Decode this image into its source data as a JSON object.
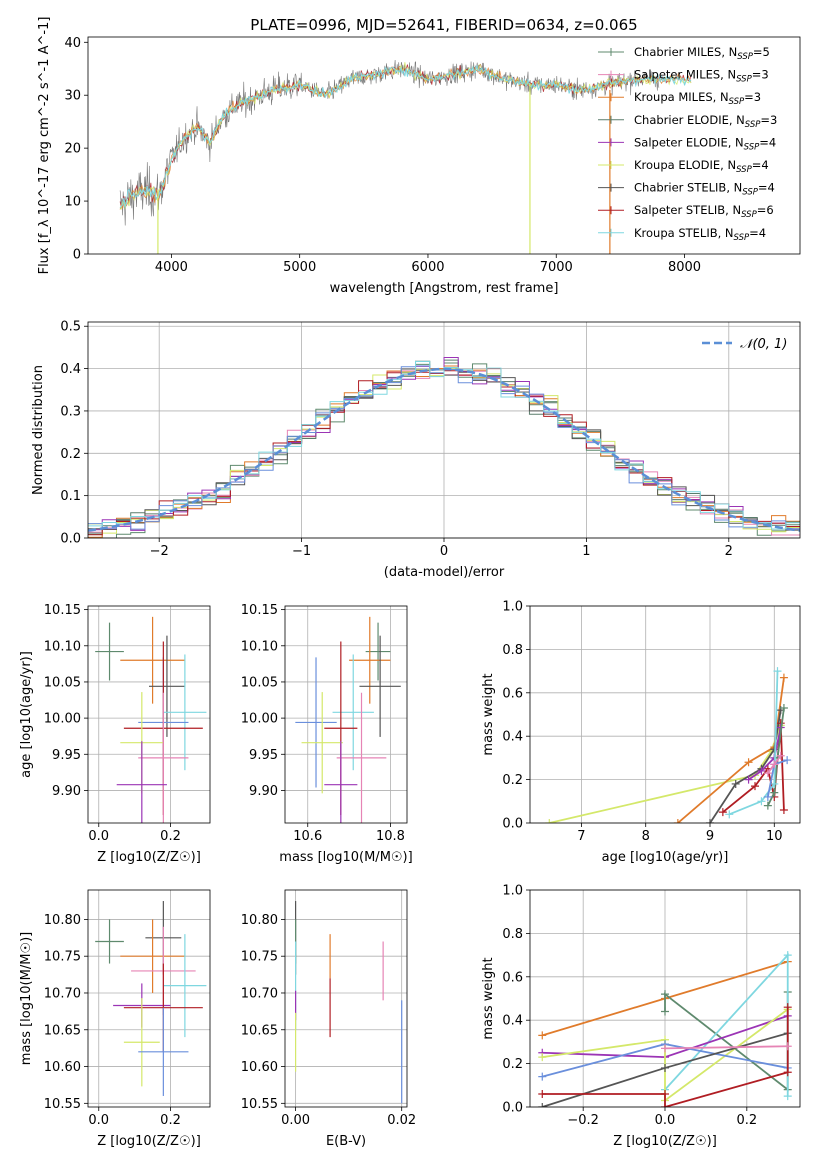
{
  "figure_title": "PLATE=0996, MJD=52641, FIBERID=0634, z=0.065",
  "colors": {
    "Chabrier MILES": "#5f8a6e",
    "Salpeter MILES": "#e684b5",
    "Kroupa MILES": "#e07b2b",
    "Chabrier ELODIE": "#5a7d6c",
    "Salpeter ELODIE": "#9b34b5",
    "Kroupa ELODIE": "#d4e86a",
    "Chabrier STELIB": "#555555",
    "Salpeter STELIB": "#b01d23",
    "Kroupa STELIB": "#7fd7e0",
    "blue": "#6a8fdc",
    "normal_curve": "#5b8fd6"
  },
  "chart_data": [
    {
      "id": "spectrum",
      "type": "line",
      "xlabel": "wavelength [Angstrom, rest frame]",
      "ylabel": "Flux [f_λ 10^-17 erg cm^-2 s^-1 A^-1]",
      "xlim": [
        3350,
        8900
      ],
      "ylim": [
        0,
        41
      ],
      "xticks": [
        4000,
        5000,
        6000,
        7000,
        8000
      ],
      "yticks": [
        0,
        10,
        20,
        30,
        40
      ],
      "grid": false,
      "legend_position": "top-right",
      "legend": [
        {
          "model": "Chabrier MILES",
          "nssp": "5"
        },
        {
          "model": "Salpeter MILES",
          "nssp": "3"
        },
        {
          "model": "Kroupa MILES",
          "nssp": "3"
        },
        {
          "model": "Chabrier ELODIE",
          "nssp": "3"
        },
        {
          "model": "Salpeter ELODIE",
          "nssp": "4"
        },
        {
          "model": "Kroupa ELODIE",
          "nssp": "4"
        },
        {
          "model": "Chabrier STELIB",
          "nssp": "4"
        },
        {
          "model": "Salpeter STELIB",
          "nssp": "6"
        },
        {
          "model": "Kroupa STELIB",
          "nssp": "4"
        }
      ],
      "continuum": {
        "x": [
          3600,
          3700,
          3800,
          3900,
          4000,
          4100,
          4200,
          4300,
          4400,
          4500,
          4600,
          4800,
          5000,
          5200,
          5400,
          5600,
          5800,
          6000,
          6200,
          6400,
          6600,
          6800,
          7000,
          7200,
          7400,
          7600,
          7800
        ],
        "y": [
          9,
          11,
          12,
          11,
          18,
          22,
          24,
          21,
          26,
          28,
          29,
          31,
          32,
          30,
          33,
          34,
          35,
          33,
          34,
          35,
          33,
          32,
          32,
          31,
          32,
          33,
          33
        ]
      },
      "spikes": [
        {
          "x": 3895,
          "y0": 0,
          "y1": 12,
          "color": "Kroupa ELODIE"
        },
        {
          "x": 6795,
          "y0": 0,
          "y1": 32,
          "color": "Kroupa ELODIE"
        },
        {
          "x": 7418,
          "y0": 0,
          "y1": 31,
          "color": "Kroupa MILES"
        }
      ]
    },
    {
      "id": "residual-histogram",
      "type": "histogram",
      "xlabel": "(data-model)/error",
      "ylabel": "Normed distribution",
      "xlim": [
        -2.5,
        2.5
      ],
      "ylim": [
        0,
        0.51
      ],
      "xticks": [
        -2,
        -1,
        0,
        1,
        2
      ],
      "yticks": [
        0.0,
        0.1,
        0.2,
        0.3,
        0.4,
        0.5
      ],
      "grid": true,
      "legend_position": "top-right",
      "reference_label": "𝒩(0, 1)",
      "bin_width": 0.1
    },
    {
      "id": "age-vs-Z",
      "type": "errorbar",
      "xlabel": "Z [log10(Z/Z☉)]",
      "ylabel": "age  [log10(age/yr)]",
      "xlim": [
        -0.03,
        0.31
      ],
      "ylim": [
        9.855,
        10.155
      ],
      "xticks": [
        0.0,
        0.2
      ],
      "yticks": [
        9.9,
        9.95,
        10.0,
        10.05,
        10.1,
        10.15
      ],
      "points": [
        {
          "series": "Chabrier MILES",
          "x": 0.03,
          "xerr": 0.04,
          "y": 10.092,
          "yerr": 0.04
        },
        {
          "series": "Kroupa MILES",
          "x": 0.15,
          "xerr": 0.09,
          "y": 10.08,
          "yerr": 0.06
        },
        {
          "series": "Chabrier STELIB",
          "x": 0.19,
          "xerr": 0.05,
          "y": 10.044,
          "yerr": 0.07
        },
        {
          "series": "Kroupa STELIB",
          "x": 0.24,
          "xerr": 0.06,
          "y": 10.008,
          "yerr": 0.08
        },
        {
          "series": "blue",
          "x": 0.18,
          "xerr": 0.07,
          "y": 9.994,
          "yerr": 0.09
        },
        {
          "series": "Salpeter STELIB",
          "x": 0.18,
          "xerr": 0.11,
          "y": 9.986,
          "yerr": 0.12
        },
        {
          "series": "Kroupa ELODIE",
          "x": 0.12,
          "xerr": 0.06,
          "y": 9.966,
          "yerr": 0.07
        },
        {
          "series": "Salpeter MILES",
          "x": 0.18,
          "xerr": 0.07,
          "y": 9.945,
          "yerr": 0.09
        },
        {
          "series": "Salpeter ELODIE",
          "x": 0.12,
          "xerr": 0.07,
          "y": 9.908,
          "yerr": 0.06
        }
      ]
    },
    {
      "id": "age-vs-mass",
      "type": "errorbar",
      "xlabel": "mass [log10(M/M☉)]",
      "xlim": [
        10.545,
        10.84
      ],
      "ylim": [
        9.855,
        10.155
      ],
      "xticks": [
        10.6,
        10.8
      ],
      "yticks": [
        9.9,
        9.95,
        10.0,
        10.05,
        10.1,
        10.15
      ],
      "points": [
        {
          "series": "Chabrier MILES",
          "x": 10.77,
          "xerr": 0.03,
          "y": 10.092,
          "yerr": 0.04
        },
        {
          "series": "Kroupa MILES",
          "x": 10.75,
          "xerr": 0.05,
          "y": 10.08,
          "yerr": 0.06
        },
        {
          "series": "Chabrier STELIB",
          "x": 10.775,
          "xerr": 0.05,
          "y": 10.044,
          "yerr": 0.07
        },
        {
          "series": "Kroupa STELIB",
          "x": 10.71,
          "xerr": 0.05,
          "y": 10.008,
          "yerr": 0.08
        },
        {
          "series": "blue",
          "x": 10.62,
          "xerr": 0.05,
          "y": 9.994,
          "yerr": 0.09
        },
        {
          "series": "Salpeter STELIB",
          "x": 10.68,
          "xerr": 0.04,
          "y": 9.986,
          "yerr": 0.12
        },
        {
          "series": "Kroupa ELODIE",
          "x": 10.635,
          "xerr": 0.05,
          "y": 9.966,
          "yerr": 0.07
        },
        {
          "series": "Salpeter MILES",
          "x": 10.73,
          "xerr": 0.06,
          "y": 9.945,
          "yerr": 0.09
        },
        {
          "series": "Salpeter ELODIE",
          "x": 10.68,
          "xerr": 0.04,
          "y": 9.908,
          "yerr": 0.06
        }
      ]
    },
    {
      "id": "weight-vs-age",
      "type": "line",
      "xlabel": "age  [log10(age/yr)]",
      "ylabel": "mass weight",
      "xlim": [
        6.2,
        10.4
      ],
      "ylim": [
        0,
        1
      ],
      "xticks": [
        7,
        8,
        9,
        10
      ],
      "yticks": [
        0.0,
        0.2,
        0.4,
        0.6,
        0.8,
        1.0
      ],
      "grid": true,
      "series": [
        {
          "name": "Kroupa ELODIE",
          "x": [
            6.5,
            9.7,
            9.95,
            10.1
          ],
          "y": [
            0.0,
            0.22,
            0.33,
            0.45
          ]
        },
        {
          "name": "Kroupa MILES",
          "x": [
            8.5,
            9.6,
            10.0,
            10.15
          ],
          "y": [
            0.0,
            0.28,
            0.35,
            0.67
          ]
        },
        {
          "name": "Chabrier STELIB",
          "x": [
            9.0,
            9.4,
            9.8,
            10.0,
            10.1
          ],
          "y": [
            0.0,
            0.18,
            0.25,
            0.34,
            0.52
          ]
        },
        {
          "name": "Salpeter STELIB",
          "x": [
            9.2,
            9.7,
            9.9,
            10.0,
            10.1,
            10.15
          ],
          "y": [
            0.05,
            0.17,
            0.25,
            0.12,
            0.46,
            0.06
          ]
        },
        {
          "name": "Salpeter ELODIE",
          "x": [
            9.6,
            9.8,
            10.0,
            10.1
          ],
          "y": [
            0.2,
            0.24,
            0.3,
            0.44
          ]
        },
        {
          "name": "Chabrier MILES",
          "x": [
            9.9,
            10.0,
            10.05,
            10.15
          ],
          "y": [
            0.08,
            0.14,
            0.3,
            0.53
          ]
        },
        {
          "name": "Kroupa STELIB",
          "x": [
            9.3,
            9.8,
            10.0,
            10.05
          ],
          "y": [
            0.04,
            0.1,
            0.18,
            0.7
          ]
        },
        {
          "name": "blue",
          "x": [
            9.9,
            10.0,
            10.2
          ],
          "y": [
            0.12,
            0.27,
            0.29
          ]
        },
        {
          "name": "Salpeter MILES",
          "x": [
            9.9,
            10.0,
            10.1
          ],
          "y": [
            0.23,
            0.27,
            0.31
          ]
        }
      ]
    },
    {
      "id": "mass-vs-Z",
      "type": "errorbar",
      "xlabel": "Z [log10(Z/Z☉)]",
      "ylabel": "mass [log10(M/M☉)]",
      "xlim": [
        -0.03,
        0.31
      ],
      "ylim": [
        10.545,
        10.84
      ],
      "xticks": [
        0.0,
        0.2
      ],
      "yticks": [
        10.55,
        10.6,
        10.65,
        10.7,
        10.75,
        10.8
      ],
      "points": [
        {
          "series": "Chabrier MILES",
          "x": 0.03,
          "xerr": 0.04,
          "y": 10.77,
          "yerr": 0.03
        },
        {
          "series": "Chabrier STELIB",
          "x": 0.18,
          "xerr": 0.05,
          "y": 10.775,
          "yerr": 0.05
        },
        {
          "series": "Kroupa MILES",
          "x": 0.15,
          "xerr": 0.09,
          "y": 10.75,
          "yerr": 0.05
        },
        {
          "series": "Salpeter MILES",
          "x": 0.18,
          "xerr": 0.09,
          "y": 10.73,
          "yerr": 0.06
        },
        {
          "series": "Kroupa STELIB",
          "x": 0.24,
          "xerr": 0.06,
          "y": 10.71,
          "yerr": 0.07
        },
        {
          "series": "Salpeter ELODIE",
          "x": 0.12,
          "xerr": 0.08,
          "y": 10.683,
          "yerr": 0.03
        },
        {
          "series": "Salpeter STELIB",
          "x": 0.18,
          "xerr": 0.11,
          "y": 10.68,
          "yerr": 0.06
        },
        {
          "series": "Kroupa ELODIE",
          "x": 0.12,
          "xerr": 0.05,
          "y": 10.633,
          "yerr": 0.06
        },
        {
          "series": "blue",
          "x": 0.18,
          "xerr": 0.07,
          "y": 10.62,
          "yerr": 0.06
        }
      ]
    },
    {
      "id": "mass-vs-EBV",
      "type": "errorbar",
      "xlabel": "E(B-V)",
      "xlim": [
        -0.002,
        0.021
      ],
      "ylim": [
        10.545,
        10.84
      ],
      "xticks": [
        0.0,
        0.02
      ],
      "yticks": [
        10.55,
        10.6,
        10.65,
        10.7,
        10.75,
        10.8
      ],
      "points": [
        {
          "series": "Chabrier STELIB",
          "x": 0.0,
          "xerr": 0,
          "y": 10.775,
          "yerr": 0.05
        },
        {
          "series": "Chabrier MILES",
          "x": 0.0,
          "xerr": 0,
          "y": 10.77,
          "yerr": 0.03
        },
        {
          "series": "Kroupa MILES",
          "x": 0.0065,
          "xerr": 0,
          "y": 10.75,
          "yerr": 0.03
        },
        {
          "series": "Kroupa STELIB",
          "x": 0.0,
          "xerr": 0,
          "y": 10.71,
          "yerr": 0.06
        },
        {
          "series": "Salpeter MILES",
          "x": 0.0165,
          "xerr": 0,
          "y": 10.73,
          "yerr": 0.04
        },
        {
          "series": "Salpeter ELODIE",
          "x": 0.0,
          "xerr": 0,
          "y": 10.683,
          "yerr": 0.02
        },
        {
          "series": "Salpeter STELIB",
          "x": 0.0065,
          "xerr": 0,
          "y": 10.68,
          "yerr": 0.04
        },
        {
          "series": "Kroupa ELODIE",
          "x": 0.0,
          "xerr": 0,
          "y": 10.633,
          "yerr": 0.04
        },
        {
          "series": "blue",
          "x": 0.02,
          "xerr": 0,
          "y": 10.62,
          "yerr": 0.07
        }
      ]
    },
    {
      "id": "weight-vs-Z",
      "type": "line",
      "xlabel": "Z [log10(Z/Z☉)]",
      "ylabel": "mass weight",
      "xlim": [
        -0.33,
        0.33
      ],
      "ylim": [
        0,
        1
      ],
      "xticks": [
        -0.2,
        0.0,
        0.2
      ],
      "yticks": [
        0.0,
        0.2,
        0.4,
        0.6,
        0.8,
        1.0
      ],
      "grid": true,
      "series": [
        {
          "name": "Kroupa MILES",
          "x": [
            -0.3,
            0.0,
            0.3
          ],
          "y": [
            0.33,
            0.5,
            0.67
          ]
        },
        {
          "name": "Chabrier MILES",
          "x": [
            0.0,
            0.0,
            0.3,
            0.3
          ],
          "y": [
            0.44,
            0.52,
            0.08,
            0.53
          ]
        },
        {
          "name": "Kroupa STELIB",
          "x": [
            0.0,
            0.3,
            0.3
          ],
          "y": [
            0.08,
            0.7,
            0.05
          ]
        },
        {
          "name": "Salpeter ELODIE",
          "x": [
            -0.3,
            0.0,
            0.3
          ],
          "y": [
            0.25,
            0.23,
            0.42
          ]
        },
        {
          "name": "Kroupa ELODIE",
          "x": [
            -0.3,
            0.0,
            0.0,
            0.3
          ],
          "y": [
            0.23,
            0.31,
            0.03,
            0.45
          ]
        },
        {
          "name": "blue",
          "x": [
            -0.3,
            0.0,
            0.3
          ],
          "y": [
            0.14,
            0.29,
            0.18
          ]
        },
        {
          "name": "Chabrier STELIB",
          "x": [
            -0.3,
            0.0,
            0.3
          ],
          "y": [
            0.0,
            0.18,
            0.34
          ]
        },
        {
          "name": "Salpeter STELIB",
          "x": [
            -0.3,
            0.0,
            0.0,
            0.3,
            0.3
          ],
          "y": [
            0.06,
            0.06,
            0.0,
            0.16,
            0.46
          ]
        },
        {
          "name": "Salpeter MILES",
          "x": [
            0.0,
            0.3
          ],
          "y": [
            0.27,
            0.28
          ]
        }
      ]
    }
  ]
}
